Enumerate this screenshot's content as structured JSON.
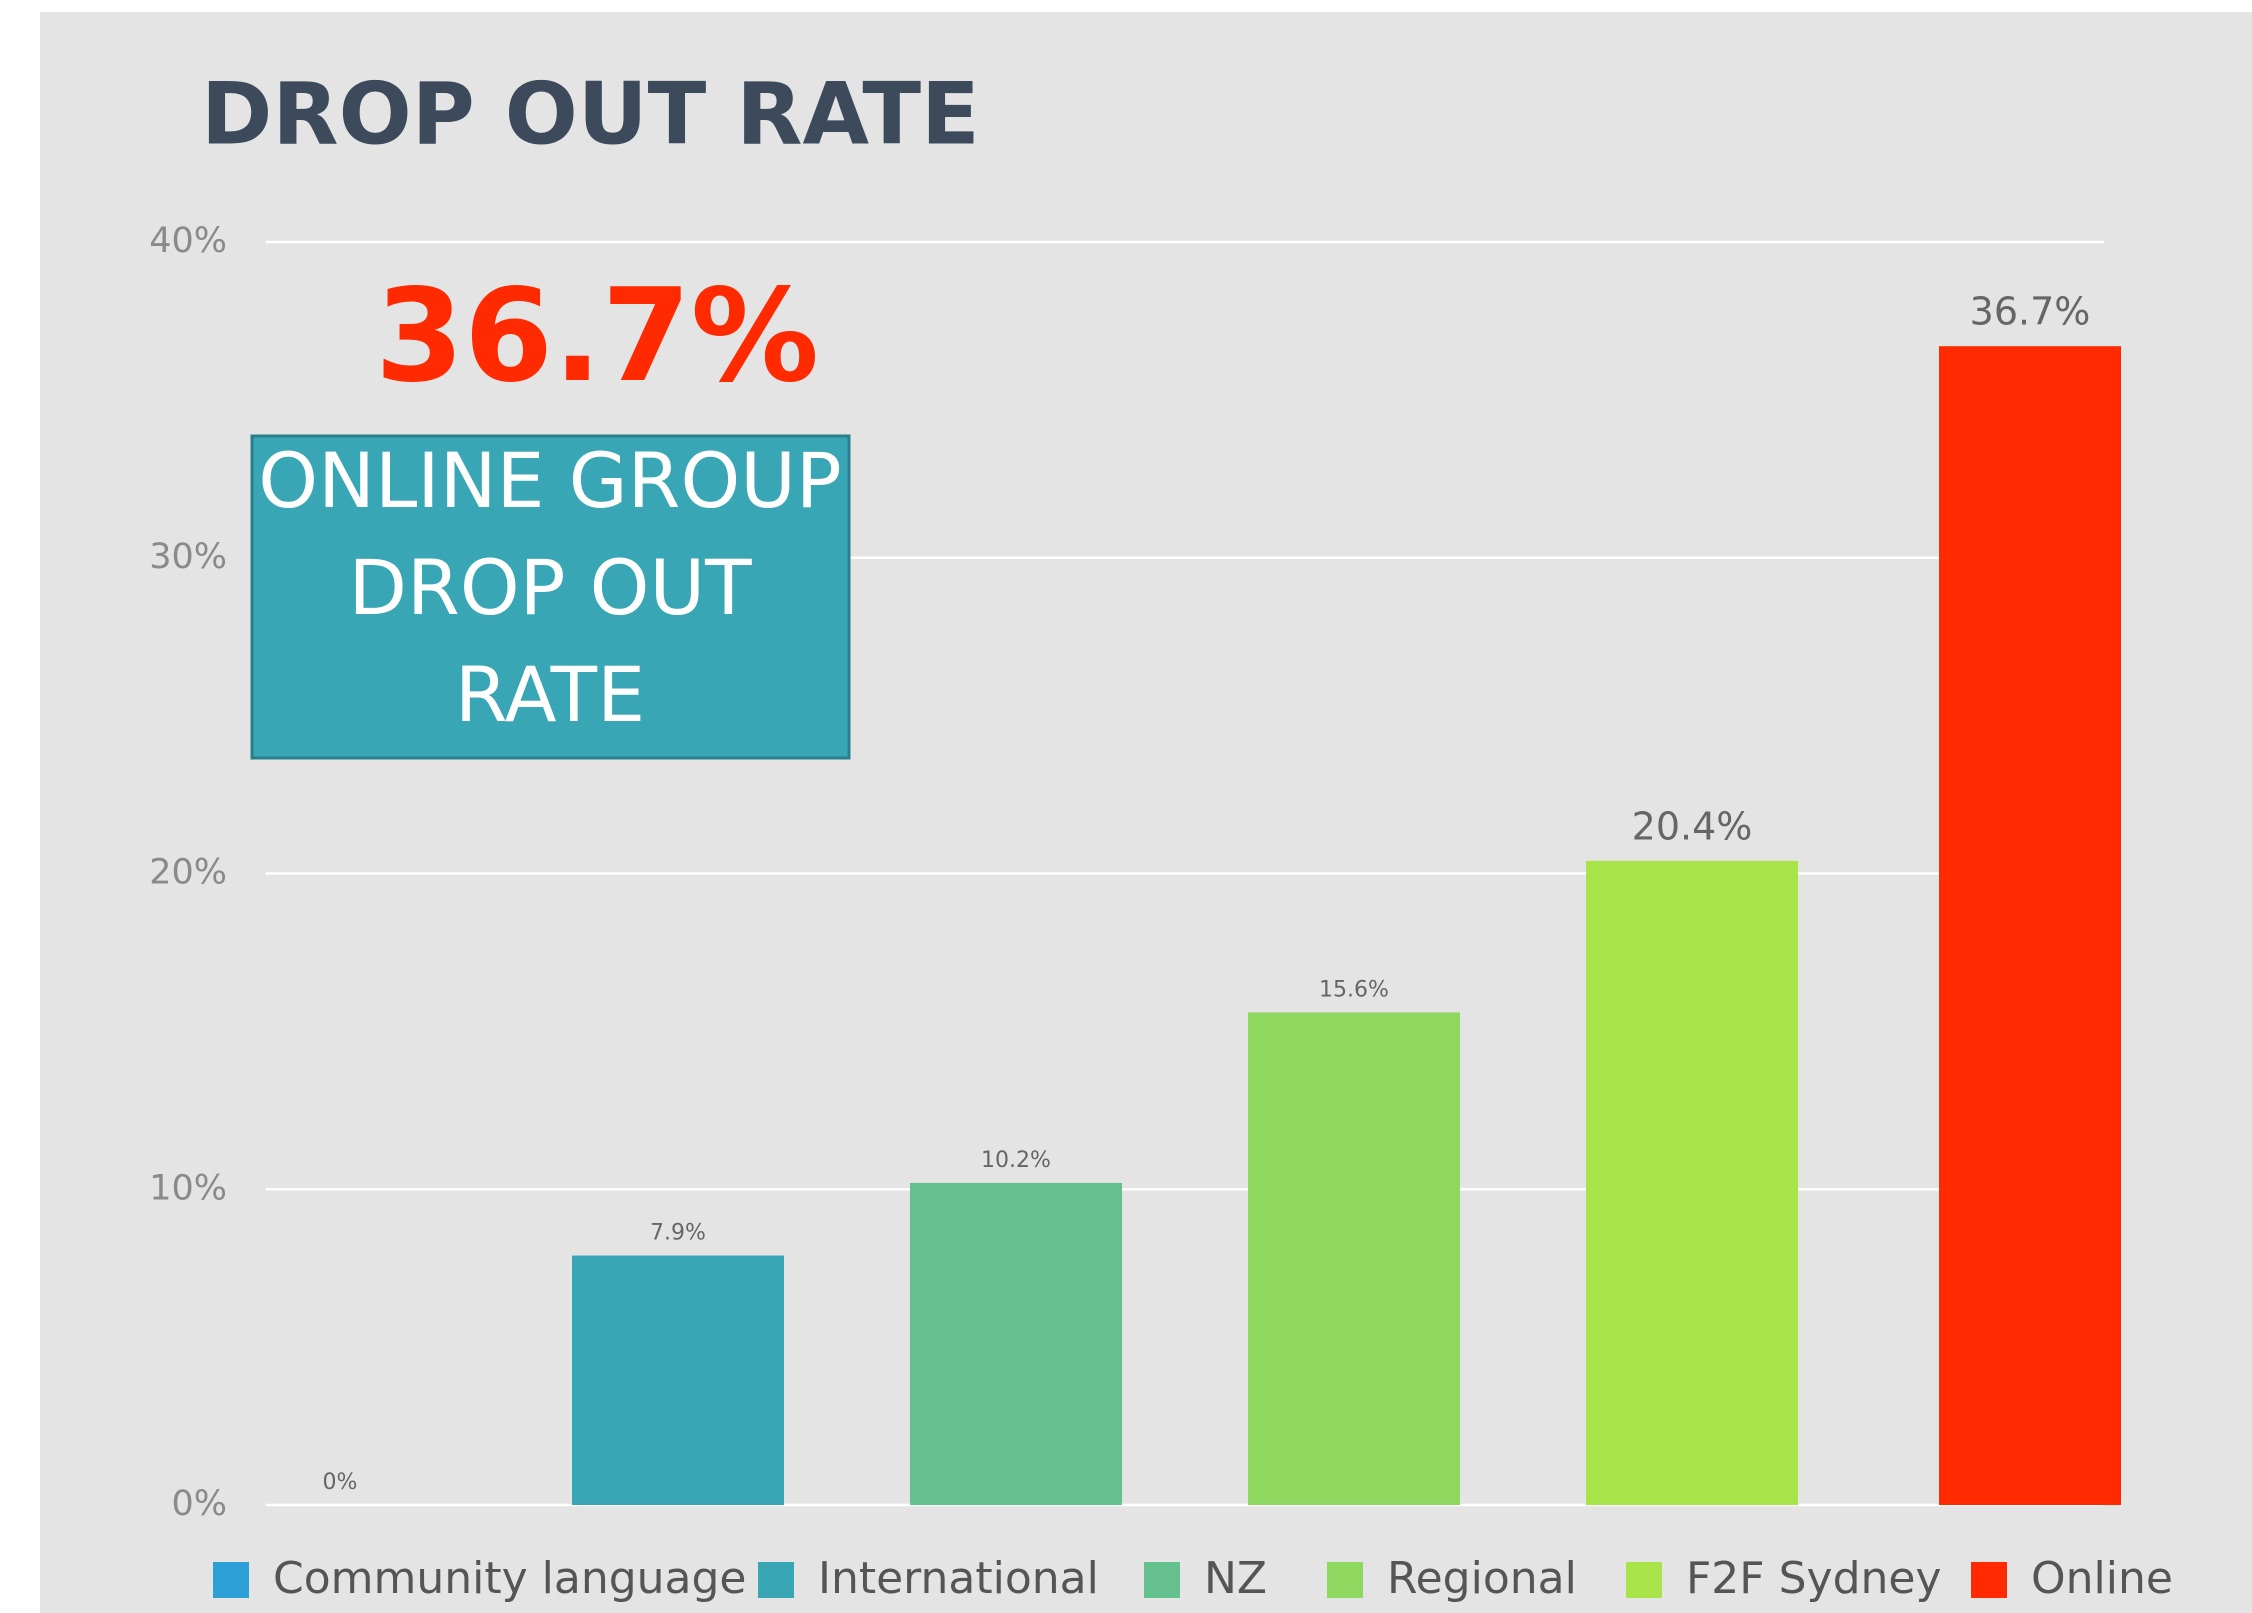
{
  "chart_data": {
    "type": "bar",
    "title": "DROP OUT RATE",
    "highlight": "36.7%",
    "callout": [
      "ONLINE GROUP",
      "DROP OUT",
      "RATE"
    ],
    "categories": [
      "Community language",
      "International",
      "NZ",
      "Regional",
      "F2F Sydney",
      "Online"
    ],
    "values": [
      0,
      7.9,
      10.2,
      15.6,
      20.4,
      36.7
    ],
    "value_labels": [
      "0%",
      "7.9%",
      "10.2%",
      "15.6%",
      "20.4%",
      "36.7%"
    ],
    "colors": [
      "#2b9fd6",
      "#38a6b5",
      "#64c08c",
      "#8fd85f",
      "#a8e34a",
      "#ff2a00"
    ],
    "ylim": [
      0,
      40
    ],
    "yticks": [
      {
        "value": 0,
        "label": "0%"
      },
      {
        "value": 10,
        "label": "10%"
      },
      {
        "value": 20,
        "label": "20%"
      },
      {
        "value": 30,
        "label": "30%"
      },
      {
        "value": 40,
        "label": "40%"
      }
    ],
    "grid": true,
    "legend": "bottom"
  }
}
